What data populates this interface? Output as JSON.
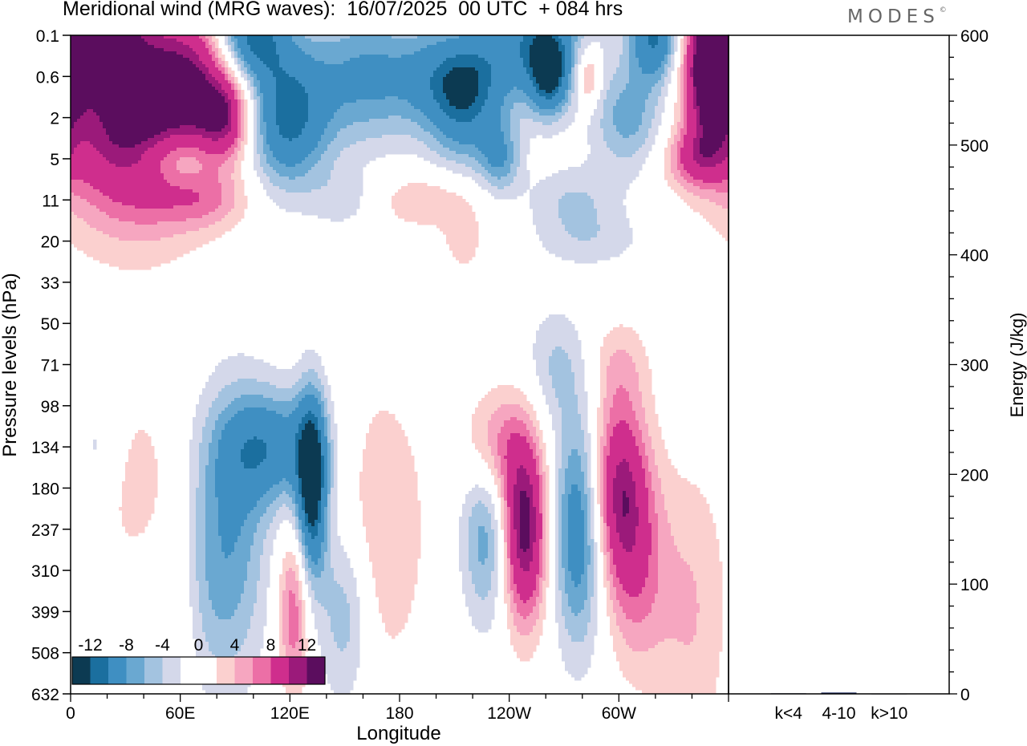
{
  "title": "Meridional wind (MRG waves):  16/07/2025  00 UTC  + 084 hrs",
  "brand": {
    "name": "MODES",
    "mark": "©"
  },
  "colors": {
    "neg": [
      "#0c3a52",
      "#1b6f9f",
      "#3f8fc2",
      "#6aa8d1",
      "#a3c3e0",
      "#d4d8ea"
    ],
    "pos": [
      "#fbd0cf",
      "#f6a6c0",
      "#ec6fa6",
      "#cf2e8d",
      "#9b1a7a",
      "#5b0d5e"
    ]
  },
  "chart_data": [
    {
      "type": "heatmap",
      "title": "Meridional wind (MRG waves):  16/07/2025  00 UTC  + 084 hrs",
      "xlabel": "Longitude",
      "ylabel": "Pressure levels (hPa)",
      "x_ticks": [
        "0",
        "60E",
        "120E",
        "180",
        "120W",
        "60W"
      ],
      "y_ticks": [
        "0.1",
        "0.6",
        "2",
        "5",
        "11",
        "20",
        "33",
        "50",
        "71",
        "98",
        "134",
        "180",
        "237",
        "310",
        "399",
        "508",
        "632"
      ],
      "colorbar_labels": [
        "-12",
        "-8",
        "-4",
        "0",
        "4",
        "8",
        "12"
      ],
      "features": [
        {
          "lon": 35,
          "p": "2",
          "v": 16,
          "sx": 30,
          "sy": 1.8
        },
        {
          "lon": 10,
          "p": "0.1",
          "v": 14,
          "sx": 18,
          "sy": 0.8
        },
        {
          "lon": 70,
          "p": "0.6",
          "v": 8,
          "sx": 18,
          "sy": 1.2
        },
        {
          "lon": 85,
          "p": "2",
          "v": 9,
          "sx": 10,
          "sy": 0.7
        },
        {
          "lon": 350,
          "p": "0.6",
          "v": 15,
          "sx": 10,
          "sy": 1.2
        },
        {
          "lon": 342,
          "p": "5",
          "v": 7,
          "sx": 12,
          "sy": 0.5
        },
        {
          "lon": 283,
          "p": "0.6",
          "v": 7,
          "sx": 5,
          "sy": 0.5
        },
        {
          "lon": 98,
          "p": "0.1",
          "v": -14,
          "sx": 14,
          "sy": 0.8
        },
        {
          "lon": 118,
          "p": "2",
          "v": -13,
          "sx": 16,
          "sy": 1.2
        },
        {
          "lon": 160,
          "p": "0.6",
          "v": -8,
          "sx": 22,
          "sy": 1.2
        },
        {
          "lon": 212,
          "p": "0.6",
          "v": -10,
          "sx": 22,
          "sy": 0.9
        },
        {
          "lon": 215,
          "p": "2",
          "v": -7,
          "sx": 14,
          "sy": 1.0
        },
        {
          "lon": 255,
          "p": "0.1",
          "v": -10,
          "sx": 20,
          "sy": 0.9
        },
        {
          "lon": 262,
          "p": "0.6",
          "v": -12,
          "sx": 8,
          "sy": 0.7
        },
        {
          "lon": 320,
          "p": "0.1",
          "v": -13,
          "sx": 10,
          "sy": 0.8
        },
        {
          "lon": 305,
          "p": "2",
          "v": -7,
          "sx": 14,
          "sy": 0.9
        },
        {
          "lon": 235,
          "p": "5",
          "v": -7,
          "sx": 8,
          "sy": 0.6
        },
        {
          "lon": 58,
          "p": "5",
          "v": -6,
          "sx": 14,
          "sy": 0.5
        },
        {
          "lon": 275,
          "p": "11",
          "v": -4,
          "sx": 18,
          "sy": 0.6
        },
        {
          "lon": 150,
          "p": "11",
          "v": -3,
          "sx": 12,
          "sy": 0.5
        },
        {
          "lon": 285,
          "p": "20",
          "v": -3,
          "sx": 22,
          "sy": 0.5
        },
        {
          "lon": 75,
          "p": "11",
          "v": 4,
          "sx": 18,
          "sy": 0.5
        },
        {
          "lon": 195,
          "p": "11",
          "v": 4,
          "sx": 20,
          "sy": 0.5
        },
        {
          "lon": 215,
          "p": "20",
          "v": 3,
          "sx": 8,
          "sy": 0.6
        },
        {
          "lon": 132,
          "p": "180",
          "v": -16,
          "sx": 6,
          "sy": 1.6
        },
        {
          "lon": 110,
          "p": "134",
          "v": -10,
          "sx": 20,
          "sy": 1.0
        },
        {
          "lon": 90,
          "p": "237",
          "v": -6,
          "sx": 14,
          "sy": 2.5
        },
        {
          "lon": 70,
          "p": "310",
          "v": -4,
          "sx": 16,
          "sy": 2.2
        },
        {
          "lon": 150,
          "p": "399",
          "v": -6,
          "sx": 10,
          "sy": 1.6
        },
        {
          "lon": 228,
          "p": "237",
          "v": -8,
          "sx": 10,
          "sy": 1.6
        },
        {
          "lon": 278,
          "p": "237",
          "v": -11,
          "sx": 10,
          "sy": 2.0
        },
        {
          "lon": 265,
          "p": "71",
          "v": -4,
          "sx": 12,
          "sy": 1.0
        },
        {
          "lon": 15,
          "p": "134",
          "v": -3,
          "sx": 8,
          "sy": 0.8
        },
        {
          "lon": 248,
          "p": "237",
          "v": 16,
          "sx": 9,
          "sy": 1.6
        },
        {
          "lon": 232,
          "p": "134",
          "v": 7,
          "sx": 12,
          "sy": 1.0
        },
        {
          "lon": 300,
          "p": "180",
          "v": 12,
          "sx": 11,
          "sy": 1.6
        },
        {
          "lon": 310,
          "p": "310",
          "v": 6,
          "sx": 12,
          "sy": 1.8
        },
        {
          "lon": 340,
          "p": "399",
          "v": 4,
          "sx": 14,
          "sy": 2.5
        },
        {
          "lon": 122,
          "p": "399",
          "v": 8,
          "sx": 6,
          "sy": 1.4
        },
        {
          "lon": 170,
          "p": "237",
          "v": 4,
          "sx": 18,
          "sy": 2.5
        },
        {
          "lon": 40,
          "p": "180",
          "v": 3,
          "sx": 18,
          "sy": 1.8
        },
        {
          "lon": 60,
          "p": "399",
          "v": 3,
          "sx": 8,
          "sy": 2.0
        },
        {
          "lon": 300,
          "p": "71",
          "v": 3,
          "sx": 12,
          "sy": 0.8
        }
      ]
    },
    {
      "type": "bar",
      "categories": [
        "k<4",
        "4-10",
        "k>10"
      ],
      "values": [
        0.5,
        1.2,
        0.3
      ],
      "ylabel": "Energy (J/kg)",
      "ylim": [
        0,
        600
      ],
      "y_ticks": [
        "0",
        "100",
        "200",
        "300",
        "400",
        "500",
        "600"
      ],
      "bar_color": "#1c2a5e"
    }
  ]
}
